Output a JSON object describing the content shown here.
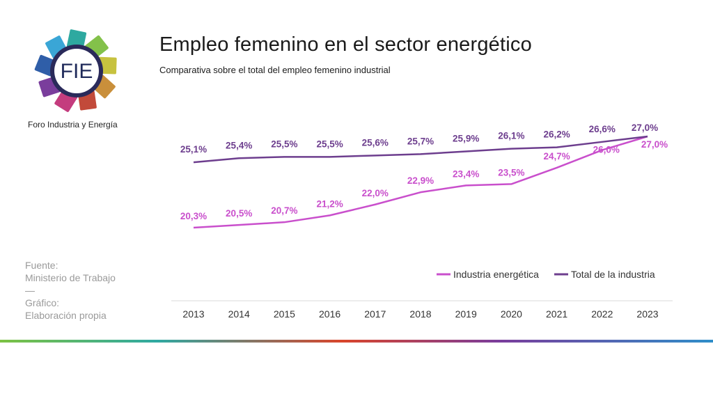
{
  "logo": {
    "text": "FIE",
    "caption": "Foro Industria y Energía",
    "petal_colors": [
      "#2ea9a0",
      "#83c14a",
      "#c7c23f",
      "#c98f3b",
      "#c24a3a",
      "#c43c7e",
      "#7a3d9c",
      "#2f5ea8",
      "#3aa6d6"
    ]
  },
  "header": {
    "title": "Empleo femenino en el sector energético",
    "subtitle": "Comparativa sobre el total del empleo femenino industrial"
  },
  "source": {
    "label1": "Fuente:",
    "value1": "Ministerio de Trabajo",
    "separator": "—",
    "label2": "Gráfico:",
    "value2": "Elaboración propia"
  },
  "chart_data": {
    "type": "line",
    "title": "Empleo femenino en el sector energético",
    "categories": [
      "2013",
      "2014",
      "2015",
      "2016",
      "2017",
      "2018",
      "2019",
      "2020",
      "2021",
      "2022",
      "2023"
    ],
    "series": [
      {
        "name": "Industria energética",
        "color": "#c94fcc",
        "values": [
          20.3,
          20.5,
          20.7,
          21.2,
          22.0,
          22.9,
          23.4,
          23.5,
          24.7,
          26.0,
          27.0
        ],
        "labels": [
          "20,3%",
          "20,5%",
          "20,7%",
          "21,2%",
          "22,0%",
          "22,9%",
          "23,4%",
          "23,5%",
          "24,7%",
          "26,0%",
          "27,0%"
        ]
      },
      {
        "name": "Total de la industria",
        "color": "#6d3e8e",
        "values": [
          25.1,
          25.4,
          25.5,
          25.5,
          25.6,
          25.7,
          25.9,
          26.1,
          26.2,
          26.6,
          27.0
        ],
        "labels": [
          "25,1%",
          "25,4%",
          "25,5%",
          "25,5%",
          "25,6%",
          "25,7%",
          "25,9%",
          "26,1%",
          "26,2%",
          "26,6%",
          "27,0%"
        ]
      }
    ],
    "legend_position": "bottom-right",
    "grid": false
  }
}
